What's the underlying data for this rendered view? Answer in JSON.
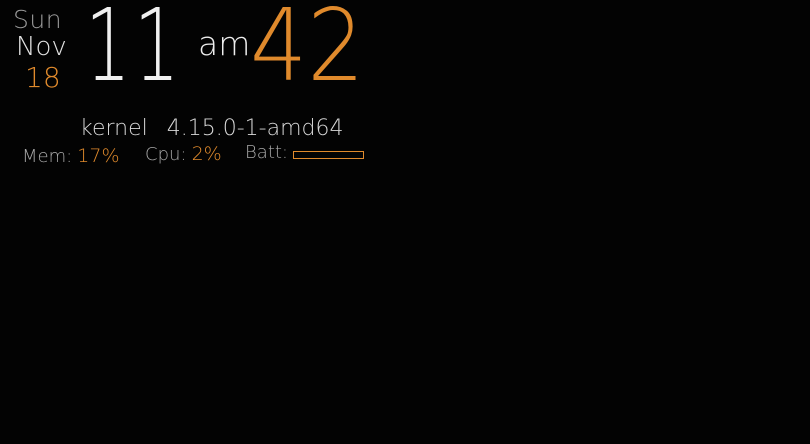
{
  "clock": {
    "day": "Sun",
    "month": "Nov",
    "date": "18",
    "hour": "11",
    "ampm": "am",
    "minute": "42"
  },
  "system": {
    "kernel_label": "kernel",
    "kernel_version": "4.15.0-1-amd64",
    "mem_label": "Mem:",
    "mem_value": "17%",
    "cpu_label": "Cpu:",
    "cpu_value": "2%",
    "batt_label": "Batt:",
    "batt_level": 0
  },
  "colors": {
    "background": "#030303",
    "accent": "#e08a2c",
    "text_primary": "#f0f0f0",
    "text_secondary": "#a8a8a8"
  }
}
